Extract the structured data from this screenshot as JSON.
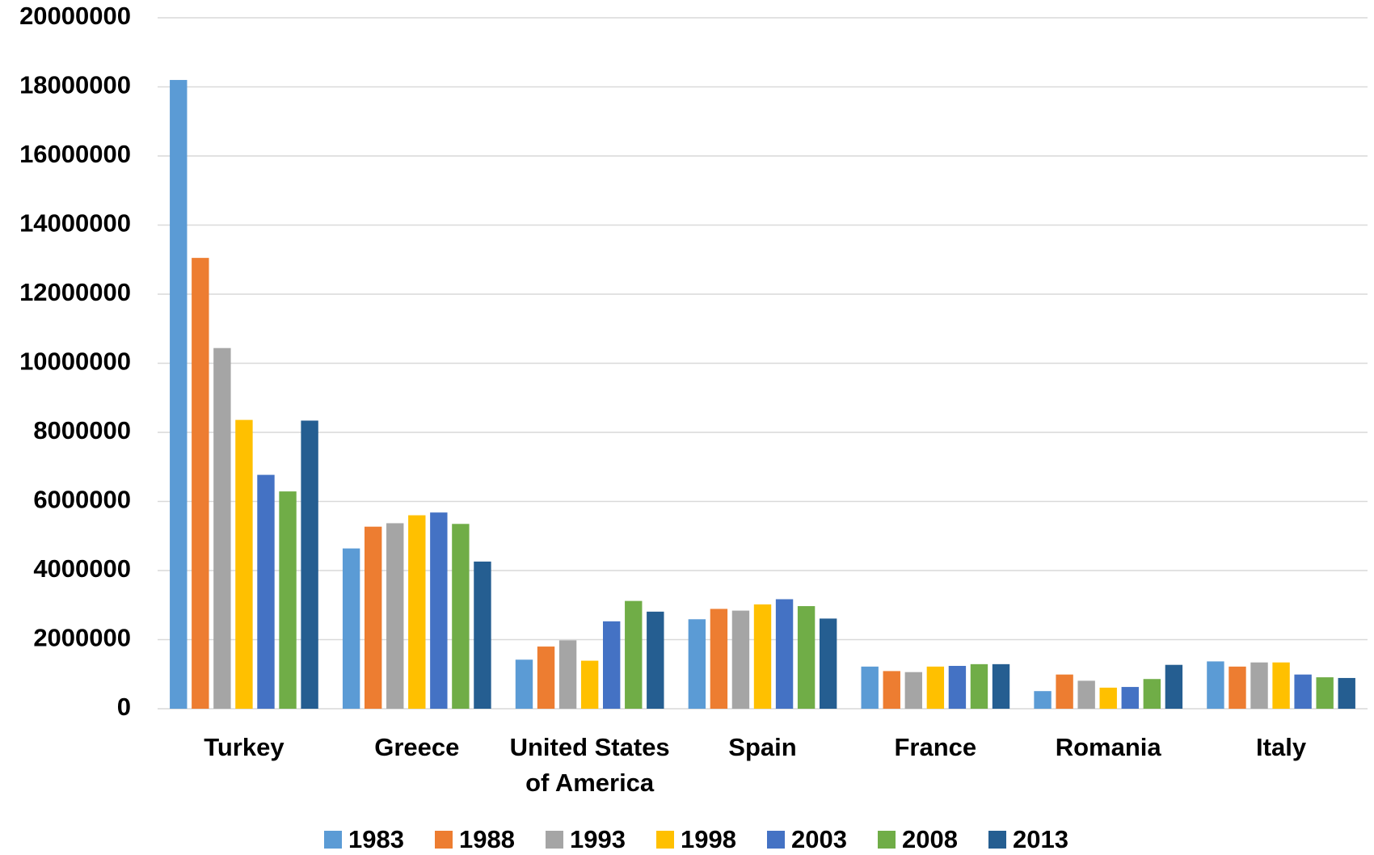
{
  "chart_data": {
    "type": "bar",
    "categories": [
      "Turkey",
      "Greece",
      "United States of America",
      "Spain",
      "France",
      "Romania",
      "Italy"
    ],
    "series": [
      {
        "name": "1983",
        "color": "#5b9bd5",
        "values": [
          18200000,
          4640000,
          1420000,
          2590000,
          1220000,
          510000,
          1370000
        ]
      },
      {
        "name": "1988",
        "color": "#ed7d31",
        "values": [
          13050000,
          5270000,
          1800000,
          2890000,
          1090000,
          990000,
          1220000
        ]
      },
      {
        "name": "1993",
        "color": "#a5a5a5",
        "values": [
          10440000,
          5370000,
          1980000,
          2840000,
          1060000,
          810000,
          1340000
        ]
      },
      {
        "name": "1998",
        "color": "#ffc000",
        "values": [
          8360000,
          5600000,
          1390000,
          3020000,
          1220000,
          610000,
          1340000
        ]
      },
      {
        "name": "2003",
        "color": "#4472c4",
        "values": [
          6770000,
          5680000,
          2530000,
          3170000,
          1240000,
          630000,
          990000
        ]
      },
      {
        "name": "2008",
        "color": "#70ad47",
        "values": [
          6290000,
          5350000,
          3120000,
          2970000,
          1290000,
          860000,
          910000
        ]
      },
      {
        "name": "2013",
        "color": "#255e91",
        "values": [
          8340000,
          4260000,
          2810000,
          2610000,
          1290000,
          1270000,
          890000
        ]
      }
    ],
    "ylim": [
      0,
      20000000
    ],
    "yticks": [
      0,
      2000000,
      4000000,
      6000000,
      8000000,
      10000000,
      12000000,
      14000000,
      16000000,
      18000000,
      20000000
    ],
    "grid": true,
    "legend": "bottom"
  }
}
